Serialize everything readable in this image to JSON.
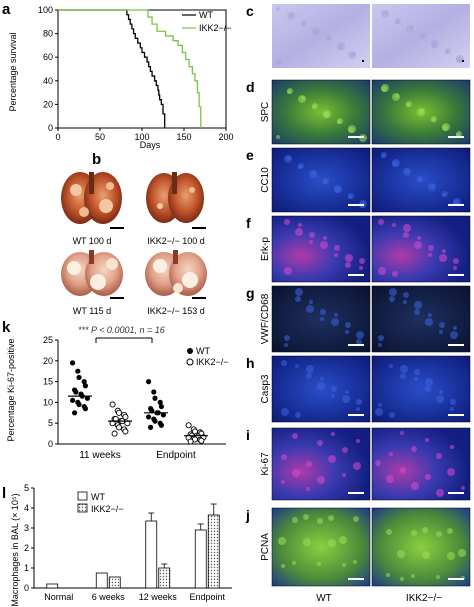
{
  "panels": {
    "a": {
      "letter": "a",
      "chart_data": {
        "type": "line",
        "title": "",
        "xlabel": "Days",
        "ylabel": "Percentage survival",
        "xlim": [
          0,
          200
        ],
        "ylim": [
          0,
          100
        ],
        "xticks": [
          0,
          50,
          100,
          150,
          200
        ],
        "yticks": [
          0,
          20,
          40,
          60,
          80,
          100
        ],
        "legend_position": "top-right",
        "series": [
          {
            "name": "WT",
            "color": "#000000",
            "x": [
              0,
              80,
              82,
              84,
              86,
              88,
              90,
              92,
              95,
              98,
              100,
              103,
              106,
              108,
              110,
              112,
              115,
              117,
              119,
              120,
              121,
              123,
              125,
              127,
              127
            ],
            "y": [
              100,
              100,
              96,
              92,
              88,
              84,
              80,
              76,
              72,
              68,
              64,
              60,
              56,
              52,
              48,
              44,
              40,
              36,
              32,
              28,
              24,
              20,
              12,
              6,
              0
            ]
          },
          {
            "name": "IKK2−/−",
            "color": "#7cc242",
            "x": [
              0,
              104,
              107,
              112,
              118,
              128,
              137,
              143,
              148,
              152,
              156,
              160,
              163,
              166,
              168,
              170,
              170
            ],
            "y": [
              100,
              100,
              94,
              88,
              82,
              78,
              74,
              70,
              64,
              58,
              52,
              46,
              40,
              30,
              18,
              6,
              0
            ]
          }
        ]
      }
    },
    "b": {
      "letter": "b",
      "captions": [
        "WT 100 d",
        "IKK2−/− 100 d",
        "WT 115 d",
        "IKK2−/− 153 d"
      ]
    },
    "c_to_j": {
      "rows": [
        {
          "letter": "c",
          "stain": ""
        },
        {
          "letter": "d",
          "stain": "SPC"
        },
        {
          "letter": "e",
          "stain": "CC10"
        },
        {
          "letter": "f",
          "stain": "Erk-p"
        },
        {
          "letter": "g",
          "stain": "VWF/CD68"
        },
        {
          "letter": "h",
          "stain": "Casp3"
        },
        {
          "letter": "i",
          "stain": "Ki-67"
        },
        {
          "letter": "j",
          "stain": "PCNA"
        }
      ],
      "column_labels": [
        "WT",
        "IKK2−/−"
      ]
    },
    "k": {
      "letter": "k",
      "annotation": "*** P < 0.0001, n = 16",
      "chart_data": {
        "type": "scatter",
        "title": "",
        "xlabel": "",
        "ylabel": "Percentage Ki-67-positive",
        "ylim": [
          0,
          25
        ],
        "yticks": [
          0,
          5,
          10,
          15,
          20,
          25
        ],
        "categories": [
          "11 weeks",
          "Endpoint"
        ],
        "legend_position": "top-right",
        "series": [
          {
            "name": "WT",
            "marker": "filled",
            "color": "#000000",
            "points": {
              "11 weeks": [
                19.5,
                17.5,
                16,
                15,
                14,
                13,
                12.5,
                12,
                11.5,
                11,
                10.5,
                10,
                9.5,
                9,
                8.5,
                7.5
              ],
              "Endpoint": [
                15,
                12.5,
                11,
                10,
                9,
                8.5,
                8,
                7.5,
                7.5,
                7,
                6.5,
                6,
                5.5,
                5,
                4.5,
                4
              ]
            },
            "mean": {
              "11 weeks": 11.5,
              "Endpoint": 7.5
            }
          },
          {
            "name": "IKK2−/−",
            "marker": "open",
            "color": "#000000",
            "points": {
              "11 weeks": [
                9.5,
                8,
                7.5,
                7,
                6.5,
                6,
                6,
                5.5,
                5.5,
                5,
                5,
                4.5,
                4,
                3.5,
                3,
                2.5
              ],
              "Endpoint": [
                4.5,
                3.5,
                3,
                2.8,
                2.5,
                2.3,
                2,
                2,
                1.8,
                1.6,
                1.5,
                1.3,
                1.1,
                1,
                0.8,
                0.6
              ]
            },
            "mean": {
              "11 weeks": 5.5,
              "Endpoint": 2
            }
          }
        ]
      }
    },
    "l": {
      "letter": "l",
      "chart_data": {
        "type": "bar",
        "title": "",
        "xlabel": "",
        "ylabel": "Macrophages in BAL (× 10⁵)",
        "ylim": [
          0,
          5
        ],
        "yticks": [
          0,
          1,
          2,
          3,
          4,
          5
        ],
        "categories": [
          "Normal",
          "6 weeks",
          "12 weeks",
          "Endpoint"
        ],
        "legend_position": "top-left",
        "series": [
          {
            "name": "WT",
            "fill": "open",
            "values": [
              0.2,
              0.75,
              3.35,
              2.9
            ],
            "errors": [
              0,
              0,
              0.4,
              0.3
            ]
          },
          {
            "name": "IKK2−/−",
            "fill": "dotted",
            "values": [
              0,
              0.55,
              1.0,
              3.65
            ],
            "errors": [
              0,
              0,
              0.2,
              0.55
            ]
          }
        ]
      }
    }
  }
}
